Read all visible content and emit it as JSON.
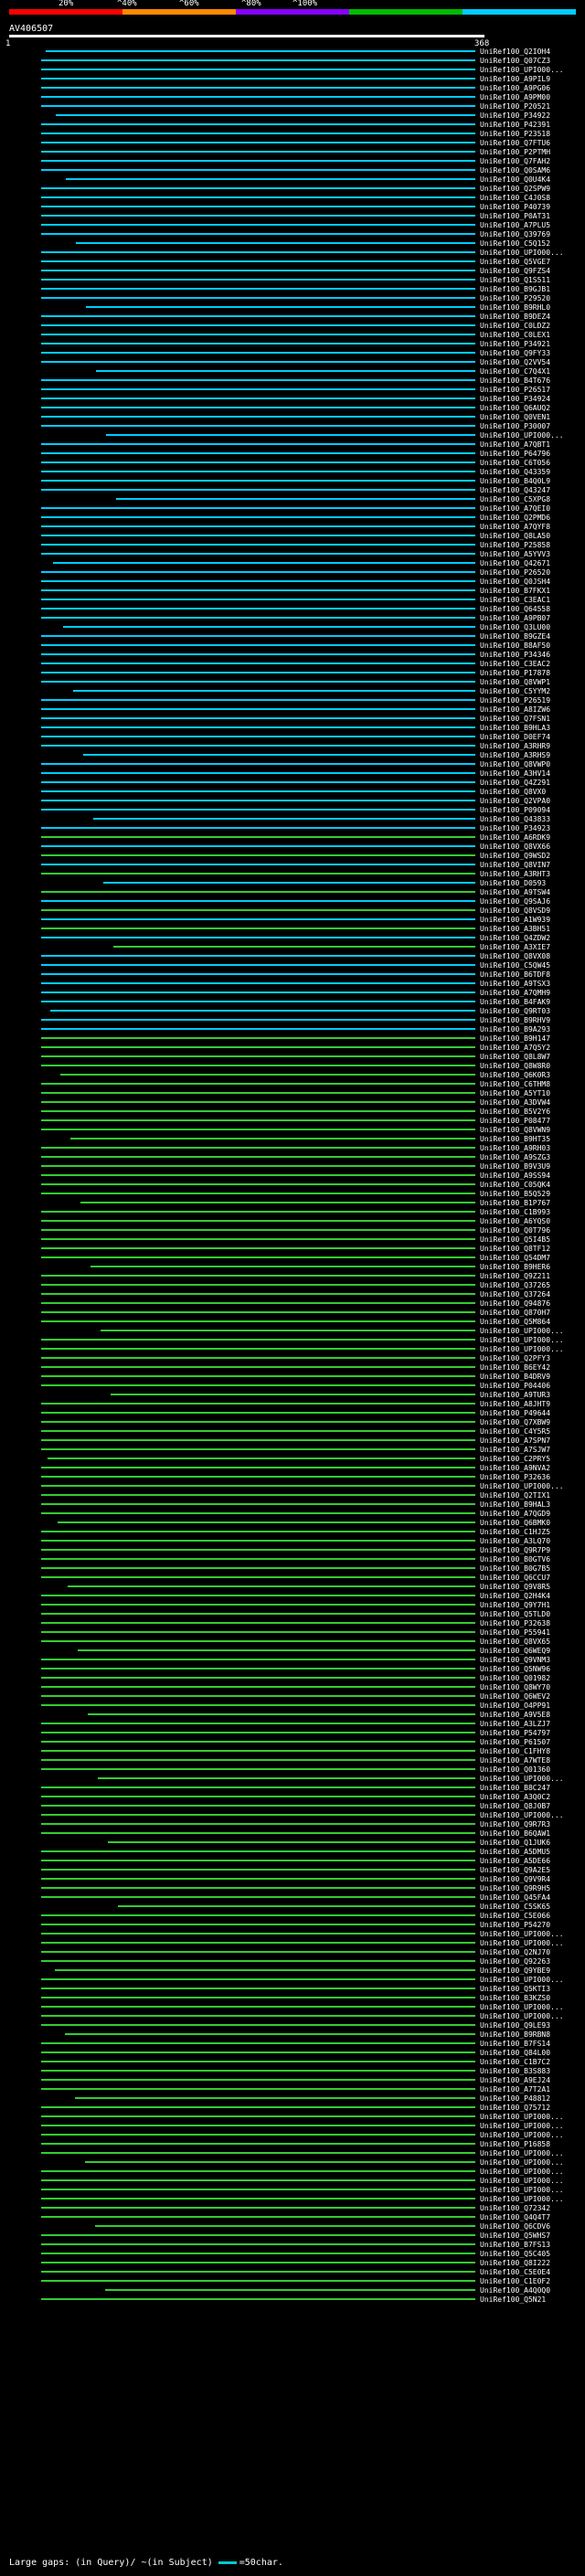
{
  "scale": {
    "labels": [
      "20%",
      "^40%",
      "^60%",
      "^80%",
      "^100%"
    ],
    "colors": [
      "#ff0000",
      "#ff8800",
      "#8800ff",
      "#00bb00",
      "#00ccff"
    ]
  },
  "query": {
    "name": "AV406507",
    "start": "1",
    "end": "368"
  },
  "hit_colors": {
    "cyan": "#00ccff",
    "green": "#33cc33"
  },
  "hits": [
    "UniRef100_Q2IOH4",
    "UniRef100_Q07CZ3",
    "UniRef100_UPI000...",
    "UniRef100_A9PIL9",
    "UniRef100_A9PG06",
    "UniRef100_A9PM00",
    "UniRef100_P20521",
    "UniRef100_P34922",
    "UniRef100_P42391",
    "UniRef100_P23518",
    "UniRef100_Q7FTU6",
    "UniRef100_P2PTMH",
    "UniRef100_Q7FAH2",
    "UniRef100_Q0SAM6",
    "UniRef100_Q0U4K4",
    "UniRef100_Q2SPW9",
    "UniRef100_C4J0S8",
    "UniRef100_P40739",
    "UniRef100_P0AT31",
    "UniRef100_A7PLU5",
    "UniRef100_Q39769",
    "UniRef100_C5Q152",
    "UniRef100_UPI000...",
    "UniRef100_Q5VGE7",
    "UniRef100_Q9FZS4",
    "UniRef100_Q1S511",
    "UniRef100_B9GJB1",
    "UniRef100_P29520",
    "UniRef100_B9RHL0",
    "UniRef100_B9DEZ4",
    "UniRef100_C0LDZ2",
    "UniRef100_C0LEX1",
    "UniRef100_P34921",
    "UniRef100_Q9FY33",
    "UniRef100_Q2VV54",
    "UniRef100_C7Q4X1",
    "UniRef100_B4T676",
    "UniRef100_P26517",
    "UniRef100_P34924",
    "UniRef100_Q6AUQ2",
    "UniRef100_Q0VEN1",
    "UniRef100_P30007",
    "UniRef100_UPI000...",
    "UniRef100_A7QBT1",
    "UniRef100_P64796",
    "UniRef100_C6T056",
    "UniRef100_Q43359",
    "UniRef100_B4Q0L9",
    "UniRef100_Q43247",
    "UniRef100_C5XPG8",
    "UniRef100_A7QEI0",
    "UniRef100_Q2PMD6",
    "UniRef100_A7QYF8",
    "UniRef100_Q8LA50",
    "UniRef100_P25858",
    "UniRef100_A5YVV3",
    "UniRef100_Q42671",
    "UniRef100_P26520",
    "UniRef100_Q0JSH4",
    "UniRef100_B7FKX1",
    "UniRef100_C3EAC1",
    "UniRef100_Q64558",
    "UniRef100_A9PB07",
    "UniRef100_Q3LU00",
    "UniRef100_B9GZE4",
    "UniRef100_B8AF50",
    "UniRef100_P34346",
    "UniRef100_C3EAC2",
    "UniRef100_P17878",
    "UniRef100_Q8VWP1",
    "UniRef100_C5YYM2",
    "UniRef100_P26519",
    "UniRef100_A8IZW6",
    "UniRef100_Q7FSN1",
    "UniRef100_B9HLA3",
    "UniRef100_D0EF74",
    "UniRef100_A3RHR9",
    "UniRef100_A3RHS9",
    "UniRef100_Q8VWP0",
    "UniRef100_A3HV14",
    "UniRef100_Q4Z291",
    "UniRef100_Q8VX0",
    "UniRef100_Q2VPA0",
    "UniRef100_P09094",
    "UniRef100_Q43833",
    "UniRef100_P34923",
    "UniRef100_A6RDK9",
    "UniRef100_Q8VX66",
    "UniRef100_Q9WSD2",
    "UniRef100_Q8VIN7",
    "UniRef100_A3RHT3",
    "UniRef100_D0593",
    "UniRef100_A9TSW4",
    "UniRef100_Q9SAJ6",
    "UniRef100_Q8VSD9",
    "UniRef100_A1W939",
    "UniRef100_A3BH51",
    "UniRef100_Q4ZDW2",
    "UniRef100_A3XIE7",
    "UniRef100_Q8VX08",
    "UniRef100_C5QW45",
    "UniRef100_B6TDF8",
    "UniRef100_A9TSX3",
    "UniRef100_A7QMH9",
    "UniRef100_B4FAK9",
    "UniRef100_Q9RT03",
    "UniRef100_B9RHV9",
    "UniRef100_B9A293",
    "UniRef100_B9H147",
    "UniRef100_A7Q5Y2",
    "UniRef100_Q8L8W7",
    "UniRef100_Q8W8R0",
    "UniRef100_Q6K0R3",
    "UniRef100_C6THM8",
    "UniRef100_A5YT10",
    "UniRef100_A3DVW4",
    "UniRef100_B5V2Y6",
    "UniRef100_P08477",
    "UniRef100_Q8VWN9",
    "UniRef100_B9HT35",
    "UniRef100_A9RH03",
    "UniRef100_A9SZG3",
    "UniRef100_B9V3U9",
    "UniRef100_A9SS94",
    "UniRef100_C05QK4",
    "UniRef100_B5Q529",
    "UniRef100_B1P767",
    "UniRef100_C1B993",
    "UniRef100_A6YQS0",
    "UniRef100_Q0T796",
    "UniRef100_Q5I4B5",
    "UniRef100_Q8TF12",
    "UniRef100_Q54DM7",
    "UniRef100_B9HER6",
    "UniRef100_Q9Z211",
    "UniRef100_Q37265",
    "UniRef100_Q37264",
    "UniRef100_Q94876",
    "UniRef100_Q870H7",
    "UniRef100_Q5M864",
    "UniRef100_UPI000...",
    "UniRef100_UPI000...",
    "UniRef100_UPI000...",
    "UniRef100_Q2PFY3",
    "UniRef100_B6EY42",
    "UniRef100_B4DRV9",
    "UniRef100_P04406",
    "UniRef100_A9TUR3",
    "UniRef100_A8JHT9",
    "UniRef100_P49644",
    "UniRef100_Q7XBW9",
    "UniRef100_C4Y5R5",
    "UniRef100_A7SPN7",
    "UniRef100_A7SJW7",
    "UniRef100_C2PRY5",
    "UniRef100_A9NVA2",
    "UniRef100_P32636",
    "UniRef100_UPI000...",
    "UniRef100_Q2TIX1",
    "UniRef100_B9HAL3",
    "UniRef100_A7QGD9",
    "UniRef100_Q6BMK0",
    "UniRef100_C1HJZ5",
    "UniRef100_A3LQ70",
    "UniRef100_Q9R7P9",
    "UniRef100_B0GTV6",
    "UniRef100_B0G7B5",
    "UniRef100_Q6CCU7",
    "UniRef100_Q9V8R5",
    "UniRef100_Q2H4K4",
    "UniRef100_Q9Y7H1",
    "UniRef100_Q5TLD0",
    "UniRef100_P32638",
    "UniRef100_P55941",
    "UniRef100_Q8VX65",
    "UniRef100_Q6WEQ9",
    "UniRef100_Q9VNM3",
    "UniRef100_Q5NW96",
    "UniRef100_Q01982",
    "UniRef100_Q8WY70",
    "UniRef100_Q6WEV2",
    "UniRef100_O4PP91",
    "UniRef100_A9V5E8",
    "UniRef100_A3LZJ7",
    "UniRef100_P54797",
    "UniRef100_P61507",
    "UniRef100_C1FHY8",
    "UniRef100_A7WTE8",
    "UniRef100_Q01360",
    "UniRef100_UPI000...",
    "UniRef100_B8C247",
    "UniRef100_A3Q0C2",
    "UniRef100_Q8J0B7",
    "UniRef100_UPI000...",
    "UniRef100_Q9R7R3",
    "UniRef100_B6QAW1",
    "UniRef100_Q1JUK6",
    "UniRef100_A5DMU5",
    "UniRef100_A5DE66",
    "UniRef100_Q9A2E5",
    "UniRef100_Q9V9R4",
    "UniRef100_Q9R9H5",
    "UniRef100_Q45FA4",
    "UniRef100_C5SK65",
    "UniRef100_C5E066",
    "UniRef100_P54270",
    "UniRef100_UPI000...",
    "UniRef100_UPI000...",
    "UniRef100_Q2NJ70",
    "UniRef100_Q92263",
    "UniRef100_Q9YBE9",
    "UniRef100_UPI000...",
    "UniRef100_Q5KTI3",
    "UniRef100_B3KZS0",
    "UniRef100_UPI000...",
    "UniRef100_UPI000...",
    "UniRef100_Q9LE93",
    "UniRef100_B9RBN8",
    "UniRef100_B7FS14",
    "UniRef100_Q84L00",
    "UniRef100_C1B7C2",
    "UniRef100_B3S883",
    "UniRef100_A9EJ24",
    "UniRef100_A7T2A1",
    "UniRef100_P48812",
    "UniRef100_Q75712",
    "UniRef100_UPI000...",
    "UniRef100_UPI000...",
    "UniRef100_UPI000...",
    "UniRef100_P16858",
    "UniRef100_UPI000...",
    "UniRef100_UPI000...",
    "UniRef100_UPI000...",
    "UniRef100_UPI000...",
    "UniRef100_UPI000...",
    "UniRef100_UPI000...",
    "UniRef100_Q72342",
    "UniRef100_Q4Q4T7",
    "UniRef100_Q6CDV6",
    "UniRef100_Q5WHS7",
    "UniRef100_B7FS13",
    "UniRef100_Q5C405",
    "UniRef100_Q8I222",
    "UniRef100_C5E0E4",
    "UniRef100_C1E0F2",
    "UniRef100_A4Q0Q0",
    "UniRef100_Q5N21"
  ],
  "footer": {
    "large_gaps": "Large gaps:",
    "in_query": "(in Query)/",
    "in_subject": "~(in Subject)",
    "legend": "=50char."
  }
}
